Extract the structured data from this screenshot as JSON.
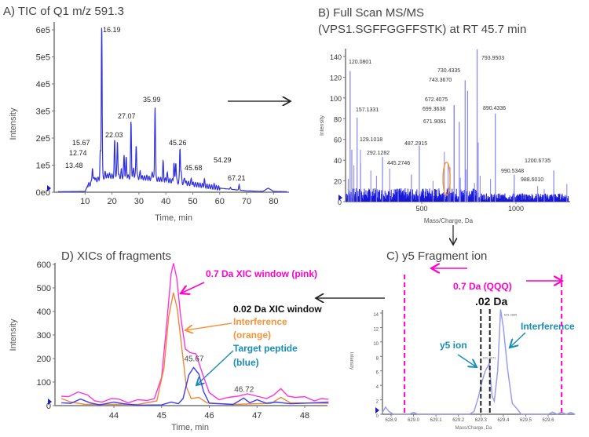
{
  "colors": {
    "trace": "#3030e0",
    "trace_light": "#8c8cf0",
    "pink": "#ff00cc",
    "orange": "#f5943a",
    "teal": "#1a8cb8",
    "black": "#111111"
  },
  "chart_data": [
    {
      "id": "A",
      "type": "line",
      "title": "A) TIC of Q1 m/z 591.3",
      "xlabel": "Time, min",
      "ylabel": "Intensity",
      "xlim": [
        0,
        85
      ],
      "ylim": [
        0,
        640000
      ],
      "xticks": [
        10,
        20,
        30,
        40,
        50,
        60,
        70,
        80
      ],
      "yticks": [
        {
          "v": 0,
          "label": "0e0"
        },
        {
          "v": 100000,
          "label": "1e5"
        },
        {
          "v": 200000,
          "label": "2e5"
        },
        {
          "v": 300000,
          "label": "3e5"
        },
        {
          "v": 400000,
          "label": "4e5"
        },
        {
          "v": 500000,
          "label": "5e5"
        },
        {
          "v": 600000,
          "label": "6e5"
        }
      ],
      "baseline": [
        [
          0,
          2000
        ],
        [
          10,
          3000
        ],
        [
          11,
          25000
        ],
        [
          14,
          45000
        ],
        [
          18,
          60000
        ],
        [
          30,
          55000
        ],
        [
          40,
          45000
        ],
        [
          50,
          30000
        ],
        [
          60,
          15000
        ],
        [
          70,
          5000
        ],
        [
          76,
          3000
        ],
        [
          78,
          15000
        ],
        [
          80,
          3000
        ],
        [
          85,
          2000
        ]
      ],
      "peaks": [
        [
          12.74,
          95000
        ],
        [
          13.48,
          60000
        ],
        [
          15.67,
          145000
        ],
        [
          16.19,
          625000
        ],
        [
          17.5,
          70000
        ],
        [
          19,
          65000
        ],
        [
          21.0,
          190000
        ],
        [
          22.03,
          190000
        ],
        [
          23.5,
          80000
        ],
        [
          24.5,
          135000
        ],
        [
          25.3,
          125000
        ],
        [
          27.07,
          260000
        ],
        [
          28.0,
          90000
        ],
        [
          29.0,
          180000
        ],
        [
          30.5,
          75000
        ],
        [
          33,
          55000
        ],
        [
          35.0,
          80000
        ],
        [
          35.99,
          320000
        ],
        [
          39.0,
          110000
        ],
        [
          40.5,
          70000
        ],
        [
          43.0,
          110000
        ],
        [
          43.7,
          115000
        ],
        [
          45.26,
          165000
        ],
        [
          45.68,
          70000
        ],
        [
          47,
          55000
        ],
        [
          49.5,
          50000
        ],
        [
          54.29,
          45000
        ],
        [
          58,
          25000
        ],
        [
          64,
          18000
        ],
        [
          67.21,
          28000
        ]
      ],
      "peak_labels": [
        {
          "x": 16.19,
          "text": "16.19"
        },
        {
          "x": 15.67,
          "text": "15.67"
        },
        {
          "x": 12.74,
          "text": "12.74"
        },
        {
          "x": 13.48,
          "text": "13.48"
        },
        {
          "x": 22.03,
          "text": "22.03"
        },
        {
          "x": 27.07,
          "text": "27.07"
        },
        {
          "x": 35.99,
          "text": "35.99"
        },
        {
          "x": 45.26,
          "text": "45.26"
        },
        {
          "x": 45.68,
          "text": "45.68"
        },
        {
          "x": 54.29,
          "text": "54.29"
        },
        {
          "x": 67.21,
          "text": "67.21"
        }
      ]
    },
    {
      "id": "B",
      "type": "bar",
      "title_line1": "B) Full Scan MS/MS",
      "title_line2": "(VPS1.SGFFGGFFSTK) at RT 45.7 min",
      "xlabel": "Mass/Charge, Da",
      "ylabel": "Intensity",
      "xlim": [
        96,
        1280
      ],
      "ylim": [
        0,
        148
      ],
      "xticks": [
        500,
        1000
      ],
      "yticks": [
        0,
        20,
        40,
        60,
        80,
        100,
        120,
        140
      ],
      "labeled_peaks": [
        [
          120.0801,
          126
        ],
        [
          157.1331,
          81
        ],
        [
          129.1018,
          50
        ],
        [
          292.1282,
          43
        ],
        [
          445.2746,
          26
        ],
        [
          487.2915,
          54
        ],
        [
          671.9061,
          93
        ],
        [
          672.4075,
          93
        ],
        [
          699.3638,
          77
        ],
        [
          730.4335,
          117
        ],
        [
          743.367,
          107
        ],
        [
          793.9503,
          147
        ],
        [
          890.4336,
          85
        ],
        [
          988.601,
          10
        ],
        [
          990.5348,
          26
        ],
        [
          1200.6735,
          30
        ]
      ],
      "other_peaks": [
        [
          110,
          22
        ],
        [
          140,
          35
        ],
        [
          175,
          50
        ],
        [
          176,
          37
        ],
        [
          230,
          30
        ],
        [
          260,
          25
        ],
        [
          330,
          32
        ],
        [
          375,
          12
        ],
        [
          560,
          20
        ],
        [
          620,
          48
        ],
        [
          640,
          36
        ],
        [
          650,
          33
        ],
        [
          705,
          23
        ],
        [
          735,
          31
        ],
        [
          780,
          18
        ],
        [
          800,
          57
        ],
        [
          810,
          25
        ],
        [
          865,
          22
        ],
        [
          1115,
          15
        ],
        [
          1150,
          12
        ],
        [
          1270,
          17
        ]
      ],
      "highlight_mz": 640
    },
    {
      "id": "C",
      "type": "line",
      "title": "C)  y5 Fragment ion",
      "xlabel": "Mass/Charge, Da",
      "ylabel": "Intensity",
      "xlim": [
        628.86,
        629.72
      ],
      "ylim": [
        0,
        14.8
      ],
      "xticks": [
        628.9,
        629.0,
        629.1,
        629.2,
        629.3,
        629.4,
        629.5,
        629.6
      ],
      "yticks": [
        0,
        2,
        4,
        6,
        8,
        10,
        12,
        14
      ],
      "profile": [
        [
          628.86,
          0.2
        ],
        [
          628.875,
          1.0
        ],
        [
          628.89,
          0.4
        ],
        [
          628.91,
          0
        ],
        [
          628.98,
          0
        ],
        [
          629.0,
          0.25
        ],
        [
          629.02,
          0
        ],
        [
          629.25,
          0
        ],
        [
          629.27,
          0.4
        ],
        [
          629.29,
          2.5
        ],
        [
          629.305,
          4.5
        ],
        [
          629.32,
          6
        ],
        [
          629.337,
          7
        ],
        [
          629.35,
          2.5
        ],
        [
          629.36,
          1.8
        ],
        [
          629.375,
          6
        ],
        [
          629.388,
          14.5
        ],
        [
          629.4,
          12
        ],
        [
          629.42,
          6
        ],
        [
          629.44,
          1.5
        ],
        [
          629.46,
          0.8
        ],
        [
          629.48,
          0
        ],
        [
          629.6,
          0
        ],
        [
          629.62,
          0.3
        ],
        [
          629.64,
          0
        ],
        [
          629.66,
          0.3
        ],
        [
          629.68,
          0
        ],
        [
          629.7,
          0.25
        ],
        [
          629.72,
          0
        ]
      ],
      "peak_labels": [
        {
          "x": 629.337,
          "y": 7,
          "text": "629.3371"
        },
        {
          "x": 629.3885,
          "y": 14.5,
          "text": "629.3885"
        }
      ],
      "wide_window": [
        628.96,
        629.66
      ],
      "narrow_window": [
        629.3,
        629.34
      ],
      "annotations": {
        "wide": "0.7 Da (QQQ)",
        "narrow": ".02 Da",
        "interference": "Interference",
        "y5": "y5 ion"
      }
    },
    {
      "id": "D",
      "type": "line",
      "title": "D)  XICs of fragments",
      "xlabel": "Time, min",
      "ylabel": "Intensity",
      "xlim": [
        42.9,
        48.5
      ],
      "ylim": [
        0,
        610
      ],
      "xticks": [
        44,
        45,
        46,
        47,
        48
      ],
      "yticks": [
        0,
        100,
        200,
        300,
        400,
        500,
        600
      ],
      "series": [
        {
          "name": "0.7 Da XIC window (pink)",
          "color": "#ff33dd",
          "points": [
            [
              42.9,
              40
            ],
            [
              43.05,
              38
            ],
            [
              43.25,
              58
            ],
            [
              43.45,
              45
            ],
            [
              43.6,
              20
            ],
            [
              43.75,
              15
            ],
            [
              43.95,
              30
            ],
            [
              44.1,
              28
            ],
            [
              44.3,
              12
            ],
            [
              44.5,
              25
            ],
            [
              44.7,
              22
            ],
            [
              44.85,
              30
            ],
            [
              45.0,
              120
            ],
            [
              45.1,
              330
            ],
            [
              45.2,
              560
            ],
            [
              45.25,
              605
            ],
            [
              45.32,
              540
            ],
            [
              45.4,
              380
            ],
            [
              45.5,
              240
            ],
            [
              45.6,
              225
            ],
            [
              45.72,
              220
            ],
            [
              45.85,
              140
            ],
            [
              46.0,
              55
            ],
            [
              46.2,
              25
            ],
            [
              46.4,
              35
            ],
            [
              46.6,
              40
            ],
            [
              46.8,
              50
            ],
            [
              47.0,
              40
            ],
            [
              47.2,
              30
            ],
            [
              47.35,
              45
            ],
            [
              47.5,
              72
            ],
            [
              47.65,
              40
            ],
            [
              47.8,
              35
            ],
            [
              48.0,
              38
            ],
            [
              48.2,
              20
            ],
            [
              48.35,
              30
            ],
            [
              48.5,
              27
            ]
          ]
        },
        {
          "name": "Interference (orange)",
          "color": "#f0883a",
          "points": [
            [
              42.9,
              30
            ],
            [
              43.1,
              15
            ],
            [
              43.4,
              5
            ],
            [
              44.0,
              5
            ],
            [
              44.5,
              5
            ],
            [
              44.9,
              20
            ],
            [
              45.05,
              160
            ],
            [
              45.15,
              380
            ],
            [
              45.25,
              480
            ],
            [
              45.33,
              410
            ],
            [
              45.42,
              250
            ],
            [
              45.52,
              80
            ],
            [
              45.62,
              30
            ],
            [
              45.78,
              35
            ],
            [
              45.95,
              12
            ],
            [
              46.5,
              5
            ],
            [
              47.3,
              10
            ],
            [
              47.5,
              35
            ],
            [
              47.7,
              12
            ],
            [
              48.5,
              10
            ]
          ]
        },
        {
          "name": "Target peptide (blue)",
          "color": "#3c3cf0",
          "points": [
            [
              42.9,
              12
            ],
            [
              43.1,
              10
            ],
            [
              43.3,
              28
            ],
            [
              43.5,
              12
            ],
            [
              43.7,
              3
            ],
            [
              44.0,
              15
            ],
            [
              44.2,
              8
            ],
            [
              44.5,
              2
            ],
            [
              45.0,
              3
            ],
            [
              45.2,
              15
            ],
            [
              45.35,
              8
            ],
            [
              45.45,
              30
            ],
            [
              45.57,
              130
            ],
            [
              45.67,
              162
            ],
            [
              45.78,
              135
            ],
            [
              45.88,
              60
            ],
            [
              46.0,
              10
            ],
            [
              46.5,
              5
            ],
            [
              46.72,
              32
            ],
            [
              46.85,
              12
            ],
            [
              47.0,
              25
            ],
            [
              47.2,
              10
            ],
            [
              47.4,
              15
            ],
            [
              47.7,
              8
            ],
            [
              48.2,
              12
            ],
            [
              48.5,
              15
            ]
          ]
        }
      ],
      "peak_labels": [
        {
          "x": 45.67,
          "text": "45.67"
        },
        {
          "x": 46.72,
          "text": "46.72"
        }
      ],
      "annotations": {
        "pink": "0.7 Da XIC window (pink)",
        "narrow": "0.02 Da XIC window",
        "orange1": "Interference",
        "orange2": "(orange)",
        "blue1": "Target peptide",
        "blue2": "(blue)"
      }
    }
  ]
}
